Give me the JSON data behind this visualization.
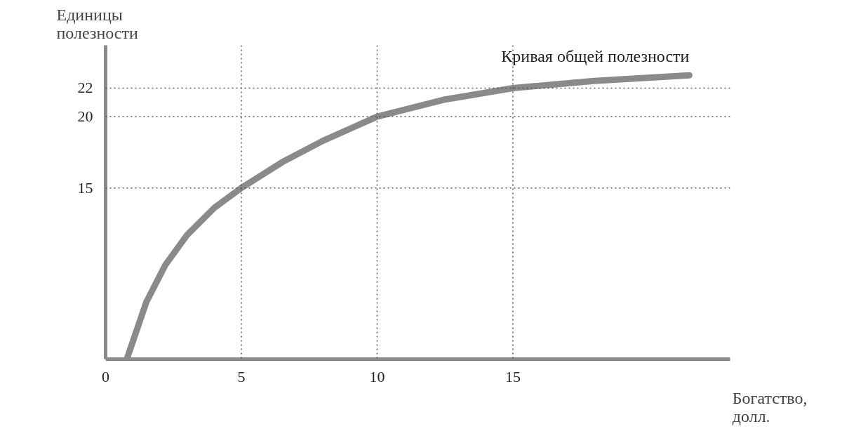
{
  "chart_data": {
    "type": "line",
    "xlabel": "Богатство,\nдолл.",
    "ylabel": "Единицы\nполезности",
    "x": [
      0.8,
      1.5,
      2.2,
      3,
      4,
      5,
      6.5,
      8,
      10,
      12.5,
      15,
      18,
      21.5
    ],
    "series": [
      {
        "name": "Кривая общей полезности",
        "color": "#8a8a8a",
        "values": [
          3.1,
          7,
          9.6,
          11.7,
          13.6,
          15,
          16.8,
          18.3,
          20,
          21.2,
          22,
          22.5,
          22.9
        ]
      }
    ],
    "xlim": [
      0,
      23
    ],
    "ylim": [
      3,
      25
    ],
    "xticks": [
      0,
      5,
      10,
      15
    ],
    "yticks": [
      15,
      20,
      22
    ],
    "ref_lines": [
      {
        "axis": "x",
        "value": 5,
        "line_style": "dotted",
        "color": "#555555"
      },
      {
        "axis": "x",
        "value": 10,
        "line_style": "dotted",
        "color": "#555555"
      },
      {
        "axis": "x",
        "value": 15,
        "line_style": "dotted",
        "color": "#555555"
      },
      {
        "axis": "y",
        "value": 15,
        "line_style": "dotted",
        "color": "#555555"
      },
      {
        "axis": "y",
        "value": 20,
        "line_style": "dotted",
        "color": "#555555"
      },
      {
        "axis": "y",
        "value": 22,
        "line_style": "dotted",
        "color": "#555555"
      }
    ],
    "grid": false,
    "marker": "none",
    "line_style": "solid"
  }
}
